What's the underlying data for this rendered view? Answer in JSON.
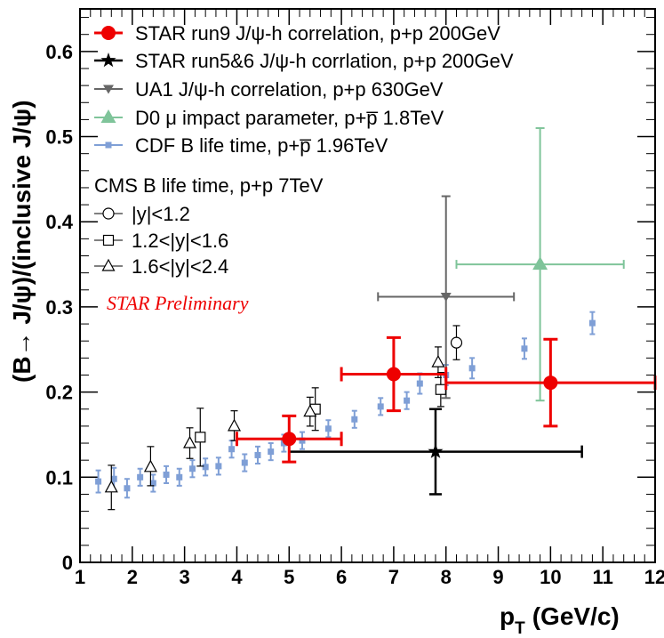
{
  "chart_data": {
    "type": "scatter",
    "xlabel": "p",
    "xlabel_sub": "T",
    "xlabel_unit": "(GeV/c)",
    "ylabel": "(B→ J/ψ)/(inclusive J/ψ)",
    "xlim": [
      1,
      12
    ],
    "ylim": [
      0,
      0.65
    ],
    "x_ticks": [
      1,
      2,
      3,
      4,
      5,
      6,
      7,
      8,
      9,
      10,
      11,
      12
    ],
    "y_ticks": [
      0,
      0.1,
      0.2,
      0.3,
      0.4,
      0.5,
      0.6
    ],
    "y_tick_labels": [
      "0",
      "0.1",
      "0.2",
      "0.3",
      "0.4",
      "0.5",
      "0.6"
    ],
    "annotation": {
      "text": "STAR Preliminary",
      "color": "#ee0000"
    },
    "legend_header": "CMS B life time, p+p 7TeV",
    "series": [
      {
        "name": "STAR run9 J/ψ-h correlation, p+p 200GeV",
        "color": "#ee0000",
        "marker": "circle-filled",
        "points": [
          {
            "x": 5.0,
            "y": 0.145,
            "xlo": 4.0,
            "xhi": 6.0,
            "ylo": 0.118,
            "yhi": 0.172
          },
          {
            "x": 7.0,
            "y": 0.221,
            "xlo": 6.0,
            "xhi": 8.0,
            "ylo": 0.178,
            "yhi": 0.264
          },
          {
            "x": 10.0,
            "y": 0.211,
            "xlo": 8.0,
            "xhi": 12.0,
            "ylo": 0.16,
            "yhi": 0.262
          }
        ]
      },
      {
        "name": "STAR run5&6 J/ψ-h corrlation, p+p 200GeV",
        "color": "#000000",
        "marker": "star",
        "points": [
          {
            "x": 7.8,
            "y": 0.13,
            "xlo": 5.0,
            "xhi": 10.6,
            "ylo": 0.08,
            "yhi": 0.18
          }
        ]
      },
      {
        "name": "UA1 J/ψ-h correlation, p+p 630GeV",
        "color": "#666666",
        "marker": "triangle-down",
        "points": [
          {
            "x": 8.0,
            "y": 0.312,
            "xlo": 6.7,
            "xhi": 9.3,
            "ylo": 0.193,
            "yhi": 0.43
          }
        ]
      },
      {
        "name": "D0 μ impact parameter, p+p̅ 1.8TeV",
        "color": "#7fc49a",
        "marker": "triangle-up",
        "points": [
          {
            "x": 9.8,
            "y": 0.35,
            "xlo": 8.2,
            "xhi": 11.4,
            "ylo": 0.19,
            "yhi": 0.51
          }
        ]
      },
      {
        "name": "CDF B life time, p+p̅ 1.96TeV",
        "color": "#7f9fd6",
        "marker": "square-small",
        "points": [
          {
            "x": 1.35,
            "y": 0.095,
            "ylo": 0.082,
            "yhi": 0.108
          },
          {
            "x": 1.65,
            "y": 0.098,
            "ylo": 0.085,
            "yhi": 0.111
          },
          {
            "x": 1.9,
            "y": 0.087,
            "ylo": 0.076,
            "yhi": 0.098
          },
          {
            "x": 2.15,
            "y": 0.1,
            "ylo": 0.09,
            "yhi": 0.11
          },
          {
            "x": 2.4,
            "y": 0.093,
            "ylo": 0.083,
            "yhi": 0.103
          },
          {
            "x": 2.65,
            "y": 0.103,
            "ylo": 0.093,
            "yhi": 0.113
          },
          {
            "x": 2.9,
            "y": 0.1,
            "ylo": 0.09,
            "yhi": 0.11
          },
          {
            "x": 3.15,
            "y": 0.11,
            "ylo": 0.1,
            "yhi": 0.12
          },
          {
            "x": 3.4,
            "y": 0.112,
            "ylo": 0.102,
            "yhi": 0.122
          },
          {
            "x": 3.65,
            "y": 0.113,
            "ylo": 0.103,
            "yhi": 0.123
          },
          {
            "x": 3.9,
            "y": 0.133,
            "ylo": 0.123,
            "yhi": 0.143
          },
          {
            "x": 4.15,
            "y": 0.117,
            "ylo": 0.107,
            "yhi": 0.127
          },
          {
            "x": 4.4,
            "y": 0.126,
            "ylo": 0.116,
            "yhi": 0.136
          },
          {
            "x": 4.65,
            "y": 0.13,
            "ylo": 0.12,
            "yhi": 0.14
          },
          {
            "x": 4.9,
            "y": 0.14,
            "ylo": 0.13,
            "yhi": 0.15
          },
          {
            "x": 5.25,
            "y": 0.143,
            "ylo": 0.133,
            "yhi": 0.153
          },
          {
            "x": 5.75,
            "y": 0.157,
            "ylo": 0.147,
            "yhi": 0.167
          },
          {
            "x": 6.25,
            "y": 0.168,
            "ylo": 0.158,
            "yhi": 0.178
          },
          {
            "x": 6.75,
            "y": 0.183,
            "ylo": 0.173,
            "yhi": 0.193
          },
          {
            "x": 7.25,
            "y": 0.19,
            "ylo": 0.18,
            "yhi": 0.2
          },
          {
            "x": 7.5,
            "y": 0.21,
            "ylo": 0.198,
            "yhi": 0.222
          },
          {
            "x": 8.0,
            "y": 0.22,
            "ylo": 0.208,
            "yhi": 0.232
          },
          {
            "x": 8.5,
            "y": 0.228,
            "ylo": 0.216,
            "yhi": 0.24
          },
          {
            "x": 9.5,
            "y": 0.251,
            "ylo": 0.239,
            "yhi": 0.263
          },
          {
            "x": 10.8,
            "y": 0.281,
            "ylo": 0.268,
            "yhi": 0.294
          }
        ]
      },
      {
        "name": "|y|<1.2",
        "color": "#000000",
        "marker": "circle-open",
        "group": "CMS",
        "points": [
          {
            "x": 8.2,
            "y": 0.258,
            "ylo": 0.238,
            "yhi": 0.278
          }
        ]
      },
      {
        "name": "1.2<|y|<1.6",
        "color": "#000000",
        "marker": "square-open",
        "group": "CMS",
        "points": [
          {
            "x": 3.3,
            "y": 0.147,
            "ylo": 0.113,
            "yhi": 0.181
          },
          {
            "x": 5.5,
            "y": 0.18,
            "ylo": 0.155,
            "yhi": 0.205
          },
          {
            "x": 7.9,
            "y": 0.203,
            "ylo": 0.183,
            "yhi": 0.223
          }
        ]
      },
      {
        "name": "1.6<|y|<2.4",
        "color": "#000000",
        "marker": "triangle-open",
        "group": "CMS",
        "points": [
          {
            "x": 1.6,
            "y": 0.088,
            "ylo": 0.062,
            "yhi": 0.114
          },
          {
            "x": 2.35,
            "y": 0.112,
            "ylo": 0.09,
            "yhi": 0.136
          },
          {
            "x": 3.1,
            "y": 0.14,
            "ylo": 0.122,
            "yhi": 0.158
          },
          {
            "x": 3.95,
            "y": 0.16,
            "ylo": 0.143,
            "yhi": 0.178
          },
          {
            "x": 5.4,
            "y": 0.177,
            "ylo": 0.16,
            "yhi": 0.194
          },
          {
            "x": 7.85,
            "y": 0.235,
            "ylo": 0.217,
            "yhi": 0.253
          }
        ]
      }
    ]
  }
}
